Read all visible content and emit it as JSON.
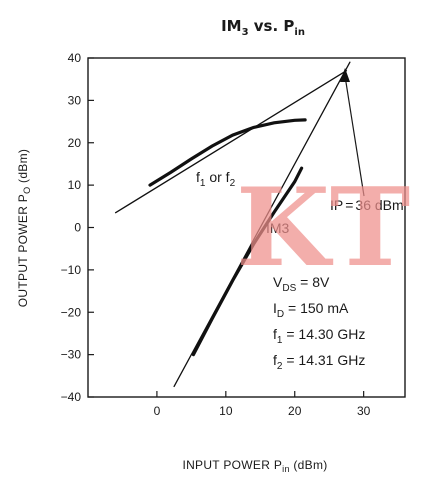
{
  "chart_data": {
    "type": "line",
    "title": "IM₃ vs. Pᵢₙ",
    "xlabel": "INPUT POWER Pᵢₙ (dBm)",
    "ylabel": "OUTPUT POWER Pₒ (dBm)",
    "xlim": [
      -10,
      36
    ],
    "ylim": [
      -40,
      40
    ],
    "xticks": [
      0,
      10,
      20,
      30
    ],
    "yticks": [
      40,
      30,
      20,
      10,
      0,
      -10,
      -20,
      -30,
      -40
    ],
    "series": [
      {
        "name": "f₁ or f₂",
        "x": [
          -1,
          2,
          5,
          8,
          11,
          14,
          17,
          20,
          21.5
        ],
        "y": [
          10,
          13,
          16.2,
          19.2,
          21.8,
          23.6,
          24.7,
          25.3,
          25.4
        ]
      },
      {
        "name": "f₁ or f₂ asymptote",
        "x": [
          -6,
          27.5
        ],
        "y": [
          3.5,
          37
        ]
      },
      {
        "name": "IM3",
        "x": [
          5.3,
          8,
          11,
          14,
          17,
          20,
          21
        ],
        "y": [
          -30,
          -21.6,
          -12.5,
          -4,
          3.6,
          10.8,
          14
        ]
      },
      {
        "name": "IM3 asymptote",
        "x": [
          2.5,
          28
        ],
        "y": [
          -37.5,
          39
        ]
      }
    ],
    "annotations": {
      "fundamental": "f₁ or f₂",
      "im3": "IM3",
      "ip": "IP = 36 dBm",
      "vds": "V_DS = 8V",
      "id": "I_D = 150 mA",
      "f1": "f₁ = 14.30 GHz",
      "f2": "f₂ = 14.31 GHz"
    },
    "watermark": "KT",
    "grid": false,
    "legend": "none"
  }
}
